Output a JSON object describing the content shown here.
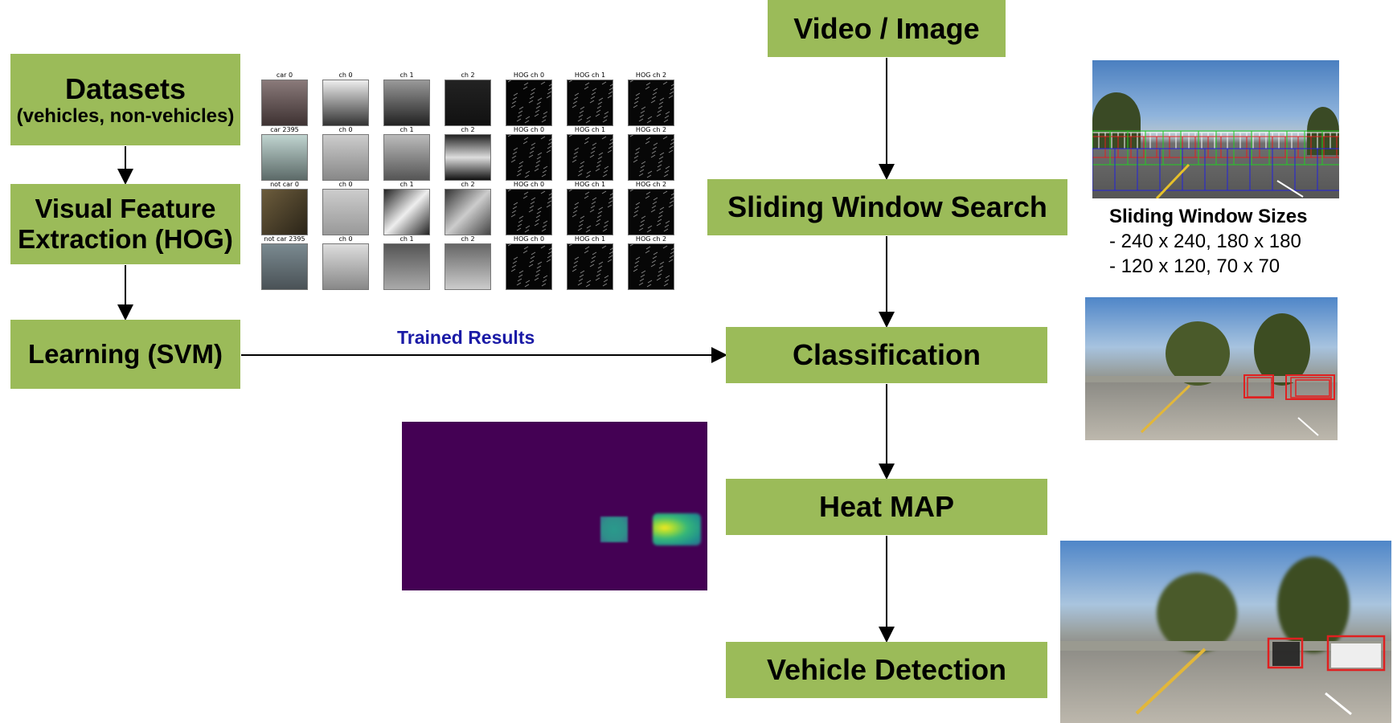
{
  "nodes": {
    "datasets": {
      "title": "Datasets",
      "subtitle": "(vehicles, non-vehicles)"
    },
    "hog": {
      "line1": "Visual Feature",
      "line2": "Extraction (HOG)"
    },
    "svm": {
      "title": "Learning (SVM)"
    },
    "video": {
      "title": "Video / Image"
    },
    "sliding": {
      "title": "Sliding Window Search"
    },
    "classification": {
      "title": "Classification"
    },
    "heatmap": {
      "title": "Heat MAP"
    },
    "detection": {
      "title": "Vehicle Detection"
    }
  },
  "edges": {
    "svm_to_classification": {
      "label": "Trained Results"
    }
  },
  "hog_grid": {
    "rows": [
      [
        "car 0",
        "ch 0",
        "ch 1",
        "ch 2",
        "HOG ch 0",
        "HOG ch 1",
        "HOG ch 2"
      ],
      [
        "car 2395",
        "ch 0",
        "ch 1",
        "ch 2",
        "HOG ch 0",
        "HOG ch 1",
        "HOG ch 2"
      ],
      [
        "not car 0",
        "ch 0",
        "ch 1",
        "ch 2",
        "HOG ch 0",
        "HOG ch 1",
        "HOG ch 2"
      ],
      [
        "not car 2395",
        "ch 0",
        "ch 1",
        "ch 2",
        "HOG ch 0",
        "HOG ch 1",
        "HOG ch 2"
      ]
    ]
  },
  "sliding_note": {
    "title": "Sliding Window Sizes",
    "line1": "- 240 x 240, 180 x 180",
    "line2": "- 120 x 120, 70 x 70"
  },
  "colors": {
    "box": "#9bbb59",
    "edge_label": "#1a1aa6",
    "heatmap_bg": "#440154"
  }
}
